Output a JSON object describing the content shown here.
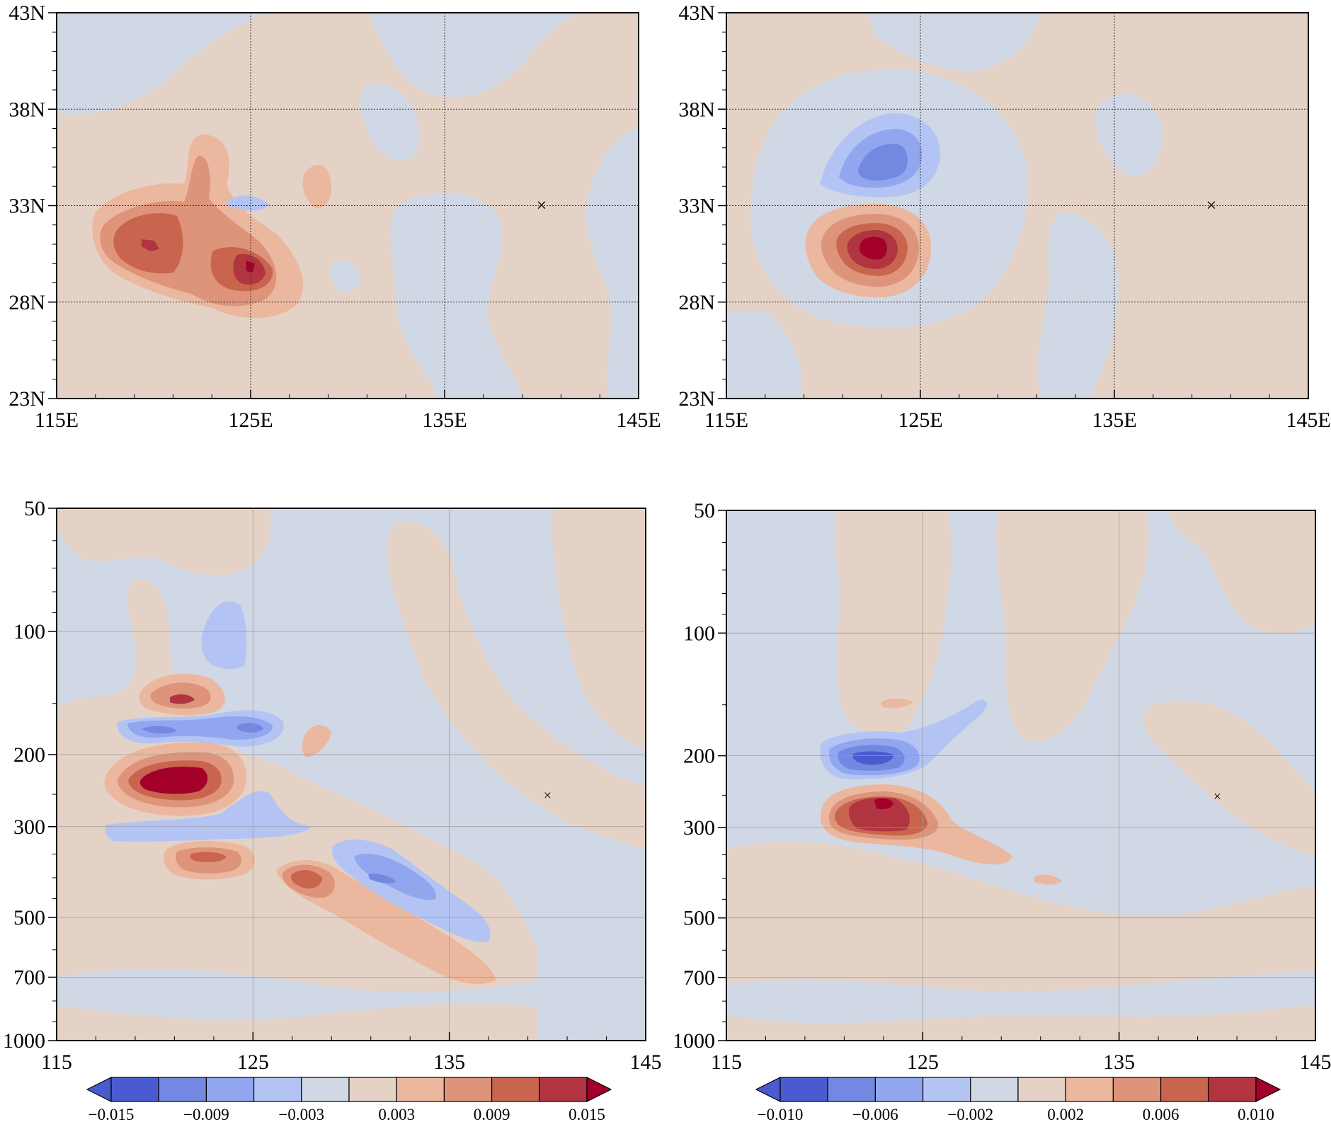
{
  "figure": {
    "colors": {
      "blue4": "#4a5bcf",
      "blue3": "#7388e0",
      "blue2": "#91a6ef",
      "blue1": "#b3c4f4",
      "neutral_blue": "#d0d7e5",
      "neutral_red": "#e4d2c6",
      "red1": "#ebb79e",
      "red2": "#dd947a",
      "red3": "#c9654f",
      "red4": "#b03540",
      "red5": "#a3002a",
      "ext_blue": "#4a5bcf",
      "ext_red": "#a3002a"
    }
  },
  "chart_data": [
    {
      "type": "contour",
      "id": "upper-left",
      "title": "",
      "xlabel": "",
      "ylabel": "",
      "x_ticks": [
        "115E",
        "125E",
        "135E",
        "145E"
      ],
      "y_ticks": [
        "23N",
        "28N",
        "33N",
        "38N",
        "43N"
      ],
      "xlim": [
        115,
        145
      ],
      "ylim": [
        23,
        43
      ],
      "grid_x": [
        125,
        135
      ],
      "grid_y": [
        28,
        33,
        38
      ],
      "marker": {
        "symbol": "×",
        "lon": 140,
        "lat": 33
      },
      "levels": [
        -0.015,
        -0.012,
        -0.009,
        -0.006,
        -0.003,
        0,
        0.003,
        0.006,
        0.009,
        0.012,
        0.015
      ],
      "features": [
        {
          "sign": "positive",
          "lon": 120,
          "lat": 31,
          "peak": 0.012
        },
        {
          "sign": "positive",
          "lon": 125,
          "lat": 30,
          "peak": 0.015
        },
        {
          "sign": "positive",
          "lon": 122.5,
          "lat": 34.5,
          "peak": 0.006
        },
        {
          "sign": "negative",
          "lon": 124.8,
          "lat": 33,
          "peak": -0.003
        }
      ]
    },
    {
      "type": "contour",
      "id": "upper-right",
      "title": "",
      "xlabel": "",
      "ylabel": "",
      "x_ticks": [
        "115E",
        "125E",
        "135E",
        "145E"
      ],
      "y_ticks": [
        "23N",
        "28N",
        "33N",
        "38N",
        "43N"
      ],
      "xlim": [
        115,
        145
      ],
      "ylim": [
        23,
        43
      ],
      "grid_x": [
        125,
        135
      ],
      "grid_y": [
        28,
        33,
        38
      ],
      "marker": {
        "symbol": "×",
        "lon": 140,
        "lat": 33
      },
      "levels": [
        -0.01,
        -0.008,
        -0.006,
        -0.004,
        -0.002,
        0,
        0.002,
        0.004,
        0.006,
        0.008,
        0.01
      ],
      "features": [
        {
          "sign": "negative",
          "lon": 123,
          "lat": 35.2,
          "peak": -0.006
        },
        {
          "sign": "positive",
          "lon": 123,
          "lat": 30.8,
          "peak": 0.01
        }
      ]
    },
    {
      "type": "contour",
      "id": "lower-left",
      "title": "",
      "xlabel": "",
      "ylabel": "",
      "x_ticks": [
        "115",
        "125",
        "135",
        "145"
      ],
      "y_ticks": [
        "50",
        "100",
        "200",
        "300",
        "500",
        "700",
        "1000"
      ],
      "xlim": [
        115,
        145
      ],
      "ylim": [
        1000,
        50
      ],
      "y_scale": "log",
      "grid_x": [
        125,
        135
      ],
      "grid_y": [
        100,
        200,
        300,
        500,
        700
      ],
      "marker": {
        "symbol": "×",
        "lon": 140,
        "p": 250
      },
      "levels": [
        -0.015,
        -0.012,
        -0.009,
        -0.006,
        -0.003,
        0,
        0.003,
        0.006,
        0.009,
        0.012,
        0.015
      ],
      "features": [
        {
          "sign": "positive",
          "lon": 121,
          "p": 225,
          "peak": 0.015
        },
        {
          "sign": "positive",
          "lon": 121,
          "p": 150,
          "peak": 0.012
        },
        {
          "sign": "negative",
          "lon": 120.5,
          "p": 175,
          "peak": -0.009
        },
        {
          "sign": "negative",
          "lon": 125,
          "p": 175,
          "peak": -0.009
        },
        {
          "sign": "positive",
          "lon": 121.5,
          "p": 380,
          "peak": 0.009
        },
        {
          "sign": "positive",
          "lon": 128.5,
          "p": 400,
          "peak": 0.012
        },
        {
          "sign": "negative",
          "lon": 131.5,
          "p": 400,
          "peak": -0.009
        },
        {
          "sign": "negative",
          "lon": 123,
          "p": 110,
          "peak": -0.003
        },
        {
          "sign": "negative",
          "lon": 124,
          "p": 280,
          "peak": -0.003
        }
      ]
    },
    {
      "type": "contour",
      "id": "lower-right",
      "title": "",
      "xlabel": "",
      "ylabel": "",
      "x_ticks": [
        "115",
        "125",
        "135",
        "145"
      ],
      "y_ticks": [
        "50",
        "100",
        "200",
        "300",
        "500",
        "700",
        "1000"
      ],
      "xlim": [
        115,
        145
      ],
      "ylim": [
        1000,
        50
      ],
      "y_scale": "log",
      "grid_x": [
        125,
        135
      ],
      "grid_y": [
        100,
        200,
        300,
        500,
        700
      ],
      "marker": {
        "symbol": "×",
        "lon": 140,
        "p": 250
      },
      "levels": [
        -0.01,
        -0.008,
        -0.006,
        -0.004,
        -0.002,
        0,
        0.002,
        0.004,
        0.006,
        0.008,
        0.01
      ],
      "features": [
        {
          "sign": "negative",
          "lon": 122.5,
          "p": 200,
          "peak": -0.008
        },
        {
          "sign": "positive",
          "lon": 123,
          "p": 260,
          "peak": 0.01
        },
        {
          "sign": "negative",
          "lon": 127,
          "p": 185,
          "peak": -0.002
        }
      ]
    }
  ],
  "colorbars": [
    {
      "id": "colorbar-left",
      "labels": [
        "−0.015",
        "−0.009",
        "−0.003",
        "0.003",
        "0.009",
        "0.015"
      ]
    },
    {
      "id": "colorbar-right",
      "labels": [
        "−0.010",
        "−0.006",
        "−0.002",
        "0.002",
        "0.006",
        "0.010"
      ]
    }
  ]
}
